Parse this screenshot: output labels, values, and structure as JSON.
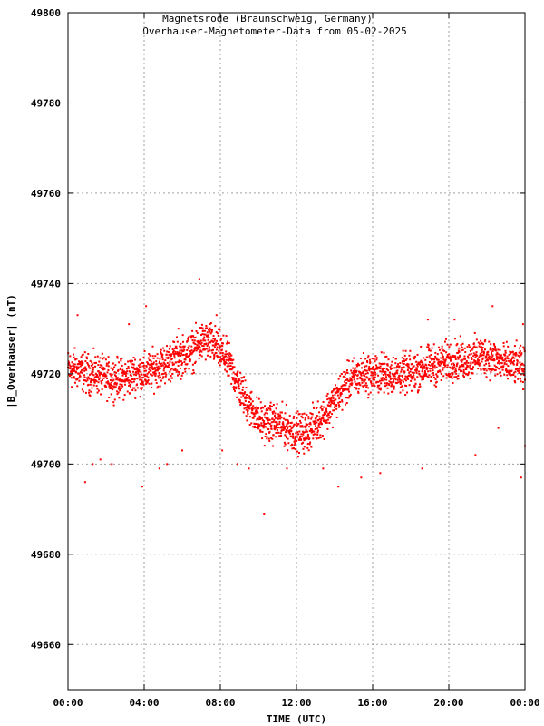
{
  "chart_data": {
    "type": "scatter",
    "title": "Magnetsrode (Braunschweig, Germany)",
    "subtitle": "Overhauser-Magnetometer-Data from 05-02-2025",
    "xlabel": "TIME (UTC)",
    "ylabel": "|B_Overhauser| (nT)",
    "xlim": [
      0,
      24
    ],
    "ylim": [
      49650,
      49800
    ],
    "x_ticks": [
      {
        "value": 0,
        "label": "00:00"
      },
      {
        "value": 4,
        "label": "04:00"
      },
      {
        "value": 8,
        "label": "08:00"
      },
      {
        "value": 12,
        "label": "12:00"
      },
      {
        "value": 16,
        "label": "16:00"
      },
      {
        "value": 20,
        "label": "20:00"
      },
      {
        "value": 24,
        "label": "00:00"
      }
    ],
    "y_ticks": [
      {
        "value": 49660,
        "label": "49660"
      },
      {
        "value": 49680,
        "label": "49680"
      },
      {
        "value": 49700,
        "label": "49700"
      },
      {
        "value": 49720,
        "label": "49720"
      },
      {
        "value": 49740,
        "label": "49740"
      },
      {
        "value": 49760,
        "label": "49760"
      },
      {
        "value": 49780,
        "label": "49780"
      },
      {
        "value": 49800,
        "label": "49800"
      }
    ],
    "grid": true,
    "marker_color": "#ff0000",
    "series": [
      {
        "points": [
          [
            0.0,
            49721
          ],
          [
            0.5,
            49721
          ],
          [
            1.0,
            49720
          ],
          [
            1.5,
            49720
          ],
          [
            2.0,
            49719
          ],
          [
            2.5,
            49719
          ],
          [
            3.0,
            49719
          ],
          [
            3.5,
            49720
          ],
          [
            4.0,
            49720
          ],
          [
            4.5,
            49721
          ],
          [
            5.0,
            49722
          ],
          [
            5.5,
            49723
          ],
          [
            6.0,
            49724
          ],
          [
            6.5,
            49725
          ],
          [
            7.0,
            49727
          ],
          [
            7.5,
            49727
          ],
          [
            8.0,
            49725
          ],
          [
            8.5,
            49722
          ],
          [
            9.0,
            49717
          ],
          [
            9.5,
            49713
          ],
          [
            10.0,
            49710
          ],
          [
            10.5,
            49709
          ],
          [
            11.0,
            49709
          ],
          [
            11.5,
            49708
          ],
          [
            12.0,
            49707
          ],
          [
            12.5,
            49707
          ],
          [
            13.0,
            49709
          ],
          [
            13.5,
            49711
          ],
          [
            14.0,
            49714
          ],
          [
            14.5,
            49717
          ],
          [
            15.0,
            49719
          ],
          [
            15.5,
            49720
          ],
          [
            16.0,
            49720
          ],
          [
            16.5,
            49720
          ],
          [
            17.0,
            49720
          ],
          [
            17.5,
            49720
          ],
          [
            18.0,
            49720
          ],
          [
            18.5,
            49721
          ],
          [
            19.0,
            49722
          ],
          [
            19.5,
            49722
          ],
          [
            20.0,
            49723
          ],
          [
            20.5,
            49723
          ],
          [
            21.0,
            49723
          ],
          [
            21.5,
            49724
          ],
          [
            22.0,
            49724
          ],
          [
            22.5,
            49723
          ],
          [
            23.0,
            49722
          ],
          [
            23.5,
            49722
          ],
          [
            24.0,
            49721
          ]
        ]
      }
    ],
    "outliers": [
      [
        0.5,
        49733
      ],
      [
        0.9,
        49696
      ],
      [
        1.3,
        49700
      ],
      [
        1.7,
        49701
      ],
      [
        2.3,
        49700
      ],
      [
        3.2,
        49731
      ],
      [
        3.9,
        49695
      ],
      [
        4.1,
        49735
      ],
      [
        4.8,
        49699
      ],
      [
        5.2,
        49700
      ],
      [
        5.8,
        49730
      ],
      [
        6.0,
        49703
      ],
      [
        6.9,
        49741
      ],
      [
        7.8,
        49733
      ],
      [
        8.1,
        49703
      ],
      [
        8.9,
        49700
      ],
      [
        9.5,
        49699
      ],
      [
        10.3,
        49689
      ],
      [
        11.5,
        49699
      ],
      [
        13.4,
        49699
      ],
      [
        14.2,
        49695
      ],
      [
        15.4,
        49697
      ],
      [
        16.4,
        49698
      ],
      [
        18.6,
        49699
      ],
      [
        18.9,
        49732
      ],
      [
        20.3,
        49732
      ],
      [
        21.4,
        49702
      ],
      [
        22.3,
        49735
      ],
      [
        22.6,
        49708
      ],
      [
        23.8,
        49697
      ],
      [
        23.9,
        49731
      ],
      [
        24.0,
        49704
      ]
    ]
  }
}
